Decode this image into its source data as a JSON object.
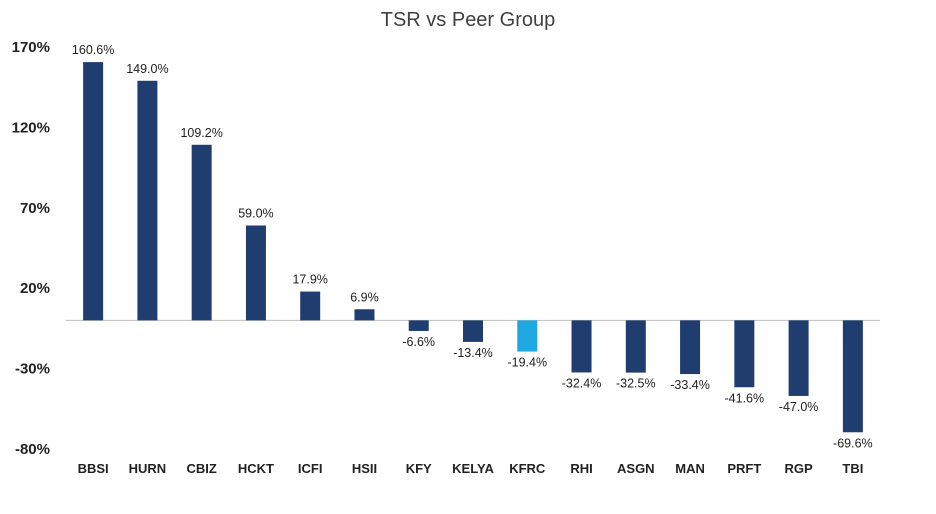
{
  "chart_data": {
    "type": "bar",
    "title": "TSR vs Peer Group",
    "xlabel": "",
    "ylabel": "",
    "ylim": [
      -80,
      170
    ],
    "yticks": [
      170,
      120,
      70,
      20,
      -30,
      -80
    ],
    "ytick_labels": [
      "170%",
      "120%",
      "70%",
      "20%",
      "-30%",
      "-80%"
    ],
    "categories": [
      "BBSI",
      "HURN",
      "CBIZ",
      "HCKT",
      "ICFI",
      "HSII",
      "KFY",
      "KELYA",
      "KFRC",
      "RHI",
      "ASGN",
      "MAN",
      "PRFT",
      "RGP",
      "TBI"
    ],
    "values": [
      160.6,
      149.0,
      109.2,
      59.0,
      17.9,
      6.9,
      -6.6,
      -13.4,
      -19.4,
      -32.4,
      -32.5,
      -33.4,
      -41.6,
      -47.0,
      -69.6
    ],
    "value_labels": [
      "160.6%",
      "149.0%",
      "109.2%",
      "59.0%",
      "17.9%",
      "6.9%",
      "-6.6%",
      "-13.4%",
      "-19.4%",
      "-32.4%",
      "-32.5%",
      "-33.4%",
      "-41.6%",
      "-47.0%",
      "-69.6%"
    ],
    "highlight": "KFRC",
    "colors": {
      "bar": "#1f3d6e",
      "highlight": "#1ea7e1",
      "axis": "#bfbfbf",
      "text": "#222222",
      "title": "#404040"
    },
    "grid": false,
    "legend": "none"
  }
}
